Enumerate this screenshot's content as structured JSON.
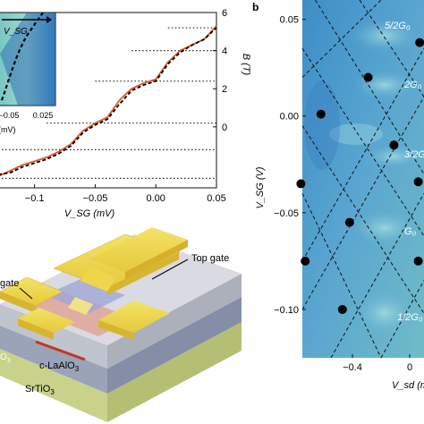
{
  "panel_b_label": "b",
  "chart_data": [
    {
      "type": "line",
      "panel": "a",
      "xlabel": "V_SG (mV)",
      "ylabel": "B (T)",
      "x_ticks": [
        "−0.1",
        "−0.05",
        "0.00",
        "0.05"
      ],
      "y_ticks": [
        "0",
        "2",
        "4",
        "6"
      ],
      "xlim": [
        -0.13,
        0.05
      ],
      "ylim": [
        -3.2,
        6
      ],
      "series": [
        {
          "style": "solid-orange",
          "x": [
            -0.13,
            -0.12,
            -0.11,
            -0.1,
            -0.09,
            -0.08,
            -0.07,
            -0.06,
            -0.05,
            -0.04,
            -0.03,
            -0.02,
            -0.01,
            0.0,
            0.01,
            0.02,
            0.03,
            0.04,
            0.05
          ],
          "y": [
            -2.6,
            -2.3,
            -2.0,
            -1.8,
            -1.6,
            -1.3,
            -0.9,
            -0.2,
            0.2,
            0.5,
            1.4,
            2.0,
            2.3,
            2.5,
            3.4,
            4.0,
            4.3,
            4.6,
            5.3
          ]
        },
        {
          "style": "dashed-black",
          "x": [
            -0.13,
            -0.12,
            -0.11,
            -0.1,
            -0.09,
            -0.08,
            -0.07,
            -0.06,
            -0.05,
            -0.04,
            -0.03,
            -0.02,
            -0.01,
            0.0,
            0.01,
            0.02,
            0.03,
            0.04,
            0.05
          ],
          "y": [
            -2.5,
            -2.4,
            -2.1,
            -1.9,
            -1.7,
            -1.4,
            -1.0,
            -0.3,
            0.1,
            0.4,
            1.2,
            1.9,
            2.2,
            2.4,
            3.3,
            3.9,
            4.3,
            4.6,
            5.2
          ]
        }
      ],
      "plateaus": [
        {
          "y": 5.2,
          "x_start": 0.01
        },
        {
          "y": 4.0,
          "x_start": -0.02
        },
        {
          "y": 2.4,
          "x_start": -0.05
        },
        {
          "y": 0.2,
          "x_start": -0.09
        },
        {
          "y": -1.2,
          "x_start": -0.13
        },
        {
          "y": -2.7,
          "x_start": -0.13
        }
      ],
      "inset": {
        "label": "V_SG",
        "x_ticks": [
          "−0.05",
          "0.025"
        ],
        "x_axis_partial_label": "(mV)"
      }
    },
    {
      "type": "heatmap",
      "panel": "b",
      "xlabel": "V_sd (mV)",
      "ylabel": "V_SG (V)",
      "x_ticks": [
        "−0.4",
        "0"
      ],
      "y_ticks": [
        "0.05",
        "0.00",
        "−0.05",
        "−0.10"
      ],
      "xlim": [
        -0.75,
        0.1
      ],
      "ylim": [
        -0.125,
        0.06
      ],
      "plateau_labels": [
        "5/2G₀",
        "2G₀",
        "3/2G",
        "G₀",
        "1/2G₀"
      ],
      "points": [
        {
          "x": -0.29,
          "y": 0.02
        },
        {
          "x": 0.07,
          "y": 0.038
        },
        {
          "x": -0.62,
          "y": 0.001
        },
        {
          "x": -0.11,
          "y": -0.015
        },
        {
          "x": -0.76,
          "y": -0.035
        },
        {
          "x": -0.42,
          "y": -0.055
        },
        {
          "x": 0.06,
          "y": -0.034
        },
        {
          "x": -0.73,
          "y": -0.075
        },
        {
          "x": 0.06,
          "y": -0.075
        },
        {
          "x": -0.47,
          "y": -0.1
        }
      ]
    }
  ],
  "device": {
    "top_gate_label": "Top gate",
    "side_gate_label": "gate",
    "caaio_label": "c-LaAlO",
    "caaio_sub": "3",
    "srtio_label": "SrTiO",
    "srtio_sub": "3",
    "edge_label": "O",
    "edge_sub": "3"
  }
}
